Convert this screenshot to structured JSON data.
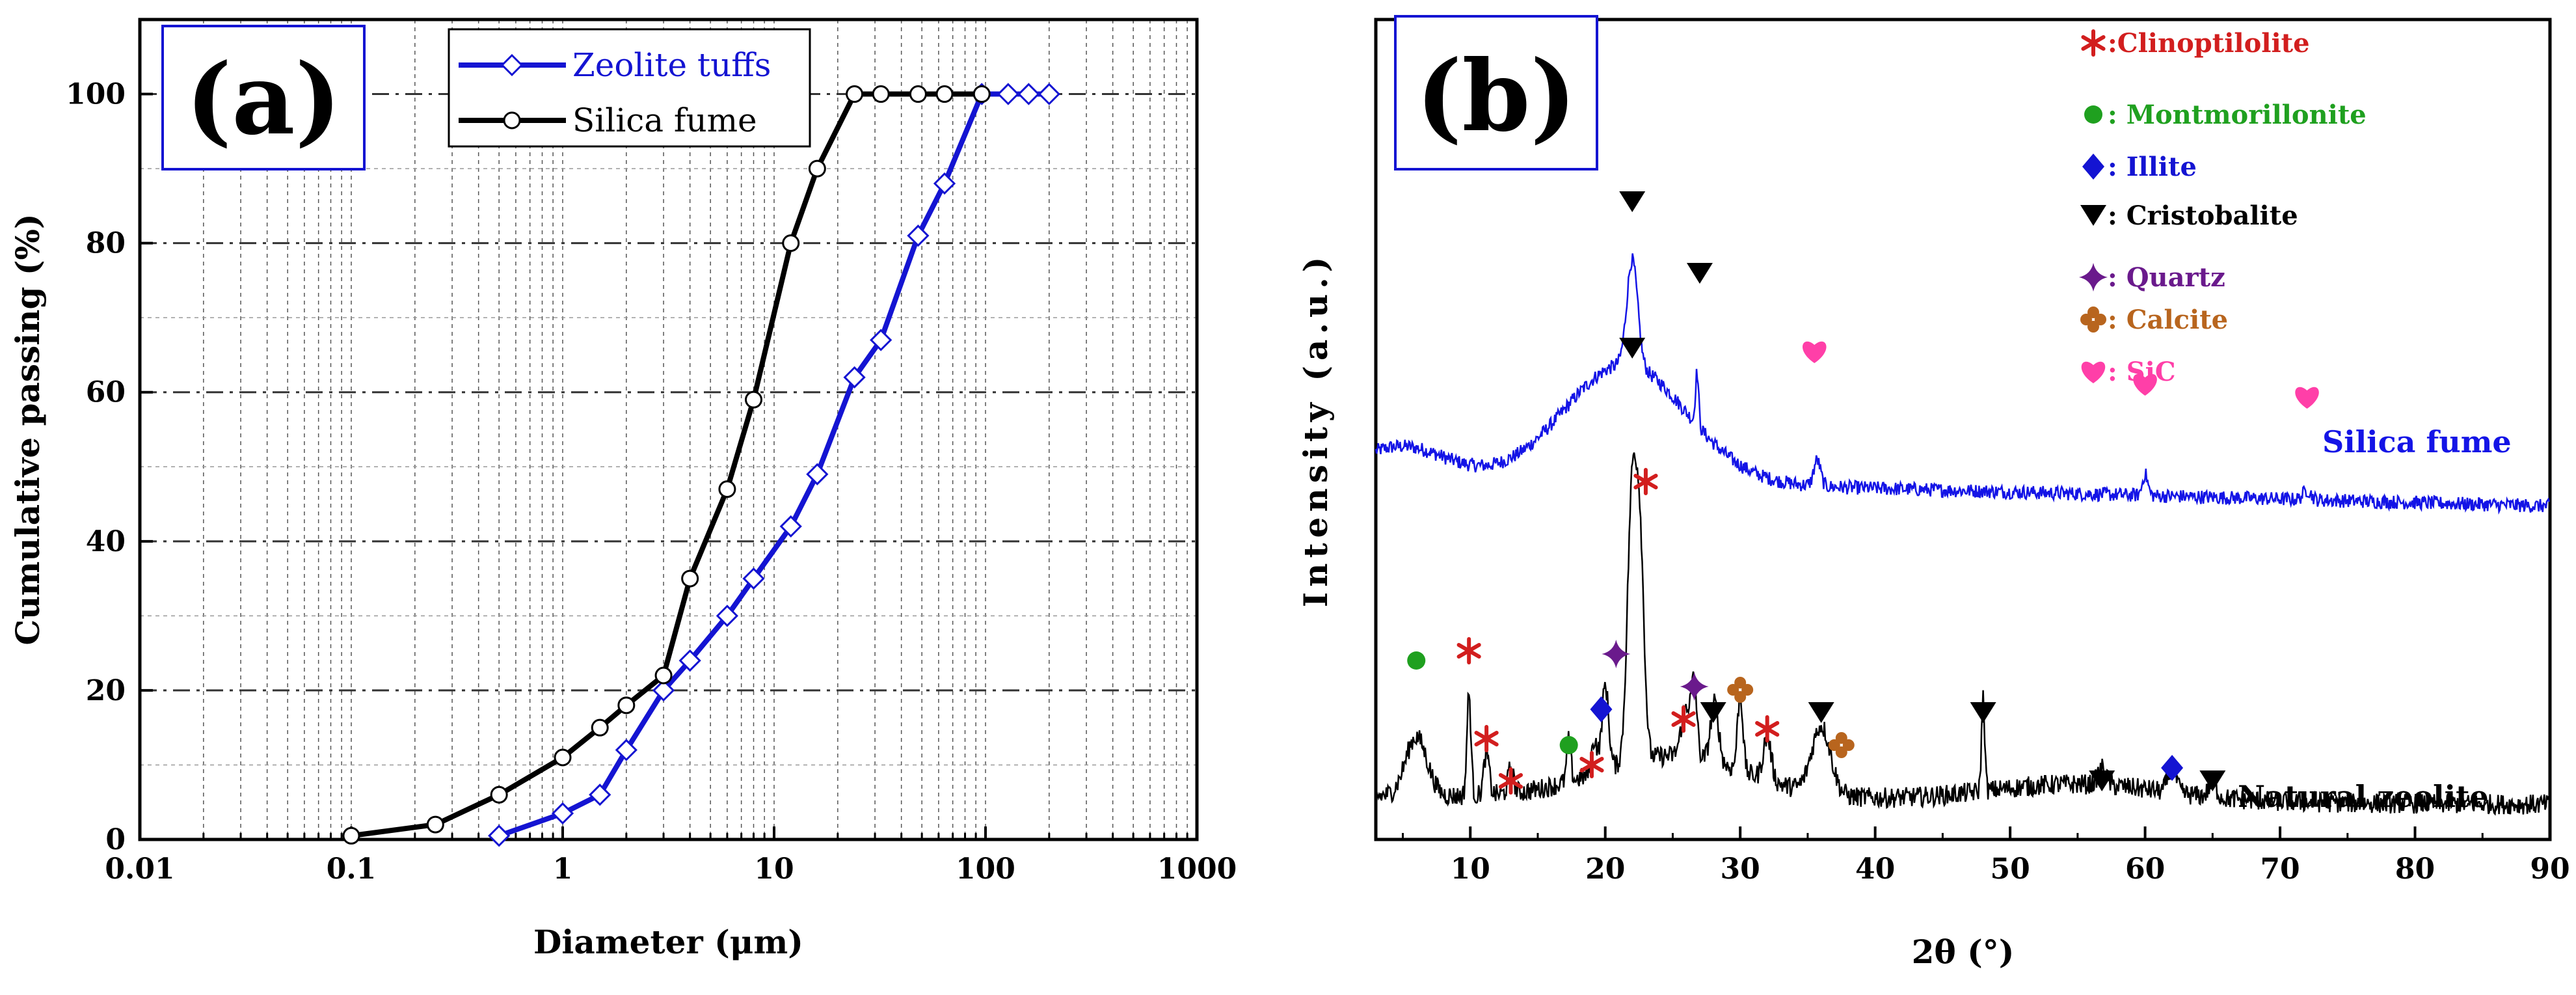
{
  "chart_data": [
    {
      "type": "line",
      "panel_label": "(a)",
      "xlabel": "Diameter (μm)",
      "ylabel": "Cumulative passing (%)",
      "xscale": "log",
      "xlim": [
        0.01,
        1000
      ],
      "ylim": [
        0,
        110
      ],
      "x_tick_labels": [
        "0.01",
        "0.1",
        "1",
        "10",
        "100",
        "1000"
      ],
      "y_tick_labels": [
        "0",
        "20",
        "40",
        "60",
        "80",
        "100"
      ],
      "legend_position": "top-right",
      "series": [
        {
          "name": "Zeolite tuffs",
          "color": "#1414d2",
          "marker": "diamond",
          "x": [
            0.5,
            1.0,
            1.5,
            2.0,
            3.0,
            4.0,
            6.0,
            8.0,
            12.0,
            16.0,
            24.0,
            32.0,
            48.0,
            64.0,
            96.0,
            128.0,
            160.0,
            200.0
          ],
          "y": [
            0.5,
            3.5,
            6,
            12,
            20,
            24,
            30,
            35,
            42,
            49,
            62,
            67,
            81,
            88,
            100,
            100,
            100,
            100
          ]
        },
        {
          "name": "Silica fume",
          "color": "#000000",
          "marker": "circle",
          "x": [
            0.1,
            0.25,
            0.5,
            1.0,
            1.5,
            2.0,
            3.0,
            4.0,
            6.0,
            8.0,
            12.0,
            16.0,
            24.0,
            32.0,
            48.0,
            64.0,
            96.0
          ],
          "y": [
            0.5,
            2,
            6,
            11,
            15,
            18,
            22,
            35,
            47,
            59,
            80,
            90,
            100,
            100,
            100,
            100,
            100
          ]
        }
      ]
    },
    {
      "type": "line",
      "panel_label": "(b)",
      "xlabel": "2θ (°)",
      "ylabel": "Intensity (a.u.)",
      "xlim": [
        3,
        90
      ],
      "x_tick_labels": [
        "10",
        "20",
        "30",
        "40",
        "50",
        "60",
        "70",
        "80",
        "90"
      ],
      "series": [
        {
          "name": "Silica fume",
          "color": "#1414e6",
          "peaks": [
            {
              "two_theta": 22.0,
              "height": 0.9,
              "width": 0.4
            },
            {
              "two_theta": 26.8,
              "height": 0.45,
              "width": 0.12
            },
            {
              "two_theta": 35.7,
              "height": 0.22,
              "width": 0.25
            },
            {
              "two_theta": 60.0,
              "height": 0.18,
              "width": 0.2
            },
            {
              "two_theta": 72.0,
              "height": 0.08,
              "width": 0.3
            }
          ],
          "markers": [
            {
              "phase": "Cristobalite",
              "two_theta": 22.0
            },
            {
              "phase": "Cristobalite",
              "two_theta": 27.0
            },
            {
              "phase": "SiC",
              "two_theta": 35.5
            },
            {
              "phase": "SiC",
              "two_theta": 60.0
            },
            {
              "phase": "SiC",
              "two_theta": 72.0
            }
          ]
        },
        {
          "name": "Natural zeolite",
          "color": "#000000",
          "peaks": [
            {
              "two_theta": 6.0,
              "height": 0.35,
              "width": 0.8
            },
            {
              "two_theta": 9.9,
              "height": 0.6,
              "width": 0.15
            },
            {
              "two_theta": 11.2,
              "height": 0.25,
              "width": 0.2
            },
            {
              "two_theta": 13.0,
              "height": 0.15,
              "width": 0.2
            },
            {
              "two_theta": 17.3,
              "height": 0.25,
              "width": 0.15
            },
            {
              "two_theta": 19.2,
              "height": 0.2,
              "width": 0.2
            },
            {
              "two_theta": 20.0,
              "height": 0.5,
              "width": 0.25
            },
            {
              "two_theta": 22.0,
              "height": 1.6,
              "width": 0.35
            },
            {
              "two_theta": 22.6,
              "height": 1.1,
              "width": 0.3
            },
            {
              "two_theta": 26.0,
              "height": 0.3,
              "width": 0.35
            },
            {
              "two_theta": 26.6,
              "height": 0.4,
              "width": 0.2
            },
            {
              "two_theta": 28.1,
              "height": 0.35,
              "width": 0.3
            },
            {
              "two_theta": 30.0,
              "height": 0.45,
              "width": 0.2
            },
            {
              "two_theta": 32.0,
              "height": 0.25,
              "width": 0.3
            },
            {
              "two_theta": 36.0,
              "height": 0.4,
              "width": 0.7
            },
            {
              "two_theta": 48.0,
              "height": 0.55,
              "width": 0.12
            },
            {
              "two_theta": 56.8,
              "height": 0.1,
              "width": 0.3
            },
            {
              "two_theta": 62.0,
              "height": 0.15,
              "width": 0.3
            },
            {
              "two_theta": 65.0,
              "height": 0.08,
              "width": 0.3
            }
          ],
          "markers": [
            {
              "phase": "Montmorillonite",
              "two_theta": 6.0
            },
            {
              "phase": "Clinoptilolite",
              "two_theta": 9.9
            },
            {
              "phase": "Clinoptilolite",
              "two_theta": 11.2
            },
            {
              "phase": "Clinoptilolite",
              "two_theta": 13.0
            },
            {
              "phase": "Montmorillonite",
              "two_theta": 17.3
            },
            {
              "phase": "Clinoptilolite",
              "two_theta": 19.0
            },
            {
              "phase": "Illite",
              "two_theta": 19.7
            },
            {
              "phase": "Quartz",
              "two_theta": 20.8
            },
            {
              "phase": "Cristobalite",
              "two_theta": 22.0
            },
            {
              "phase": "Clinoptilolite",
              "two_theta": 23.0
            },
            {
              "phase": "Clinoptilolite",
              "two_theta": 25.8
            },
            {
              "phase": "Quartz",
              "two_theta": 26.6
            },
            {
              "phase": "Cristobalite",
              "two_theta": 28.0
            },
            {
              "phase": "Calcite",
              "two_theta": 30.0
            },
            {
              "phase": "Clinoptilolite",
              "two_theta": 32.0
            },
            {
              "phase": "Cristobalite",
              "two_theta": 36.0
            },
            {
              "phase": "Calcite",
              "two_theta": 37.5
            },
            {
              "phase": "Cristobalite",
              "two_theta": 48.0
            },
            {
              "phase": "Cristobalite",
              "two_theta": 56.8
            },
            {
              "phase": "Illite",
              "two_theta": 62.0
            },
            {
              "phase": "Cristobalite",
              "two_theta": 65.0
            }
          ]
        }
      ],
      "phase_legend": [
        {
          "symbol": "*",
          "label": ":Clinoptilolite",
          "color": "#d21e1e"
        },
        {
          "symbol": "●",
          "label": ": Montmorillonite",
          "color": "#1fa01f"
        },
        {
          "symbol": "◆",
          "label": ": Illite",
          "color": "#1414d2"
        },
        {
          "symbol": "▼",
          "label": ": Cristobalite",
          "color": "#000000"
        },
        {
          "symbol": "✦",
          "label": ": Quartz",
          "color": "#6a1a8c"
        },
        {
          "symbol": "✤",
          "label": ": Calcite",
          "color": "#b8651e"
        },
        {
          "symbol": "♥",
          "label": ": SiC",
          "color": "#ff3fa8"
        }
      ]
    }
  ]
}
